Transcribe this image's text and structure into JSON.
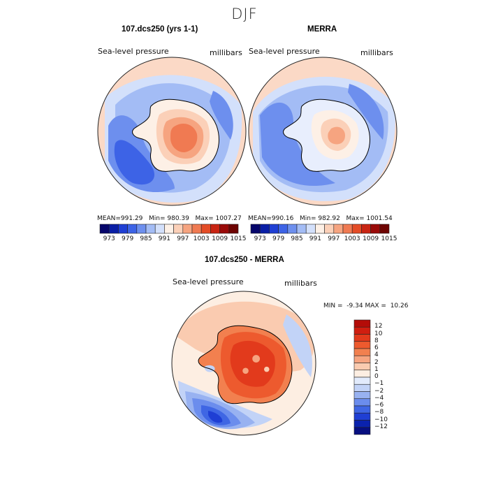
{
  "title": "DJF",
  "panels": [
    {
      "title": "107.dcs250 (yrs 1-1)",
      "variable": "Sea-level pressure",
      "units": "millibars",
      "stats": {
        "mean_label": "MEAN=",
        "mean": "991.29",
        "min_label": "Min=",
        "min": "980.39",
        "max_label": "Max=",
        "max": "1007.27"
      }
    },
    {
      "title": "MERRA",
      "variable": "Sea-level pressure",
      "units": "millibars",
      "stats": {
        "mean_label": "MEAN=",
        "mean": "990.16",
        "min_label": "Min=",
        "min": "982.92",
        "max_label": "Max=",
        "max": "1001.54"
      }
    },
    {
      "title": "107.dcs250 - MERRA",
      "variable": "Sea-level pressure",
      "units": "millibars",
      "stats": {
        "min_label": "MIN =",
        "min": "-9.34",
        "max_label": "MAX =",
        "max": "10.26"
      }
    }
  ],
  "colorbar_abs": {
    "tick_labels": [
      "973",
      "979",
      "985",
      "991",
      "997",
      "1003",
      "1009",
      "1015"
    ],
    "colors": [
      "#06066b",
      "#0a1fa6",
      "#1f3fd4",
      "#3d63e6",
      "#6d8fee",
      "#a3bcf5",
      "#d3e0fb",
      "#fdf0e6",
      "#fbd0b8",
      "#f6a480",
      "#f07a52",
      "#e44c26",
      "#c92412",
      "#9a0a08",
      "#6e0402"
    ]
  },
  "colorbar_diff": {
    "tick_labels": [
      "12",
      "10",
      "8",
      "6",
      "4",
      "2",
      "1",
      "0",
      "−1",
      "−2",
      "−4",
      "−6",
      "−8",
      "−10",
      "−12"
    ],
    "colors": [
      "#b40c08",
      "#d01e10",
      "#e23a1c",
      "#ed5a2e",
      "#f2804f",
      "#f6a480",
      "#facbb0",
      "#fdeee2",
      "#e2ebfc",
      "#c2d3f7",
      "#98b2f1",
      "#6b8ded",
      "#3f66e4",
      "#1f3fd4",
      "#0a22ad",
      "#070f80"
    ]
  }
}
